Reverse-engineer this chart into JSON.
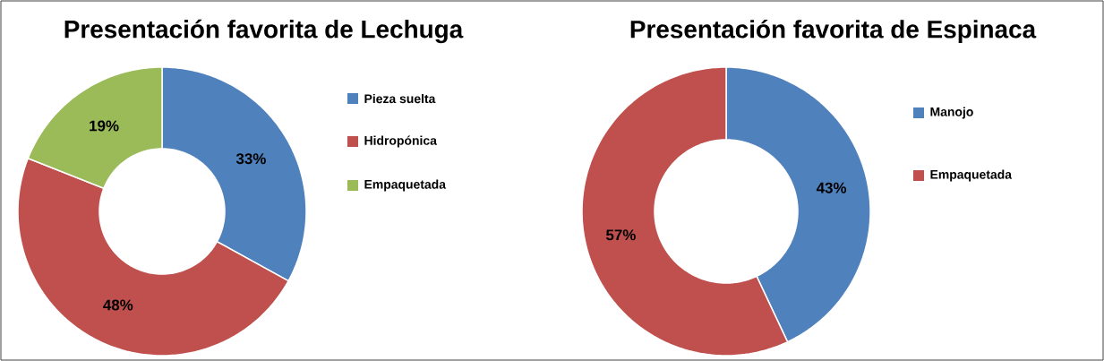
{
  "chart_data": [
    {
      "type": "donut",
      "title": "Presentación favorita de Lechuga",
      "categories": [
        "Pieza suelta",
        "Hidropónica",
        "Empaquetada"
      ],
      "values": [
        33,
        48,
        19
      ],
      "value_labels": [
        "33%",
        "48%",
        "19%"
      ],
      "colors": [
        "#4f81bd",
        "#c0504d",
        "#9bbb59"
      ],
      "legend": "right"
    },
    {
      "type": "donut",
      "title": "Presentación favorita de Espinaca",
      "categories": [
        "Manojo",
        "Empaquetada"
      ],
      "values": [
        43,
        57
      ],
      "value_labels": [
        "43%",
        "57%"
      ],
      "colors": [
        "#4f81bd",
        "#c0504d"
      ],
      "legend": "right"
    }
  ]
}
